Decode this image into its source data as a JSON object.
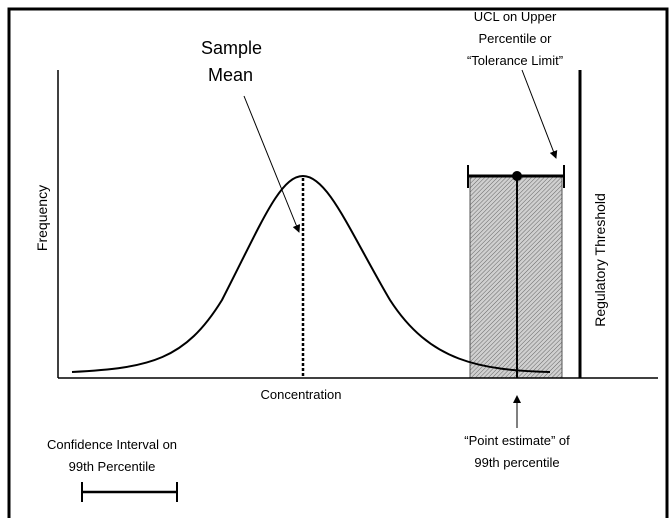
{
  "labels": {
    "sample_mean": [
      "Sample",
      "Mean"
    ],
    "ucl": [
      "UCL on Upper",
      "Percentile or",
      "“Tolerance Limit”"
    ],
    "y_axis": "Frequency",
    "x_axis": "Concentration",
    "threshold": "Regulatory Threshold",
    "point_estimate": [
      "“Point estimate” of",
      "99th percentile"
    ],
    "ci_legend": [
      "Confidence Interval on",
      "99th Percentile"
    ]
  }
}
